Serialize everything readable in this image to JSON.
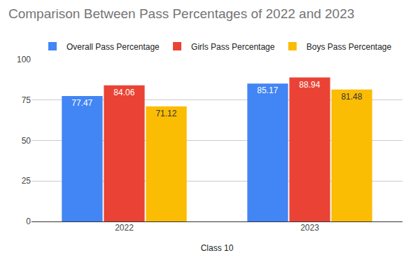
{
  "chart_data": {
    "type": "bar",
    "title": "Comparison Between Pass Percentages of 2022 and 2023",
    "x_label": "Class 10",
    "categories": [
      "2022",
      "2023"
    ],
    "series": [
      {
        "name": "Overall Pass Percentage",
        "color": "#4285f4",
        "values": [
          77.47,
          85.17
        ]
      },
      {
        "name": "Girls Pass Percentage",
        "color": "#ea4335",
        "values": [
          84.06,
          88.94
        ]
      },
      {
        "name": "Boys Pass Percentage",
        "color": "#fbbc04",
        "values": [
          71.12,
          81.48
        ]
      }
    ],
    "ylim": [
      0,
      100
    ],
    "yticks": [
      0,
      25,
      50,
      75,
      100
    ],
    "grid": true,
    "legend": "top",
    "data_labels": true
  }
}
